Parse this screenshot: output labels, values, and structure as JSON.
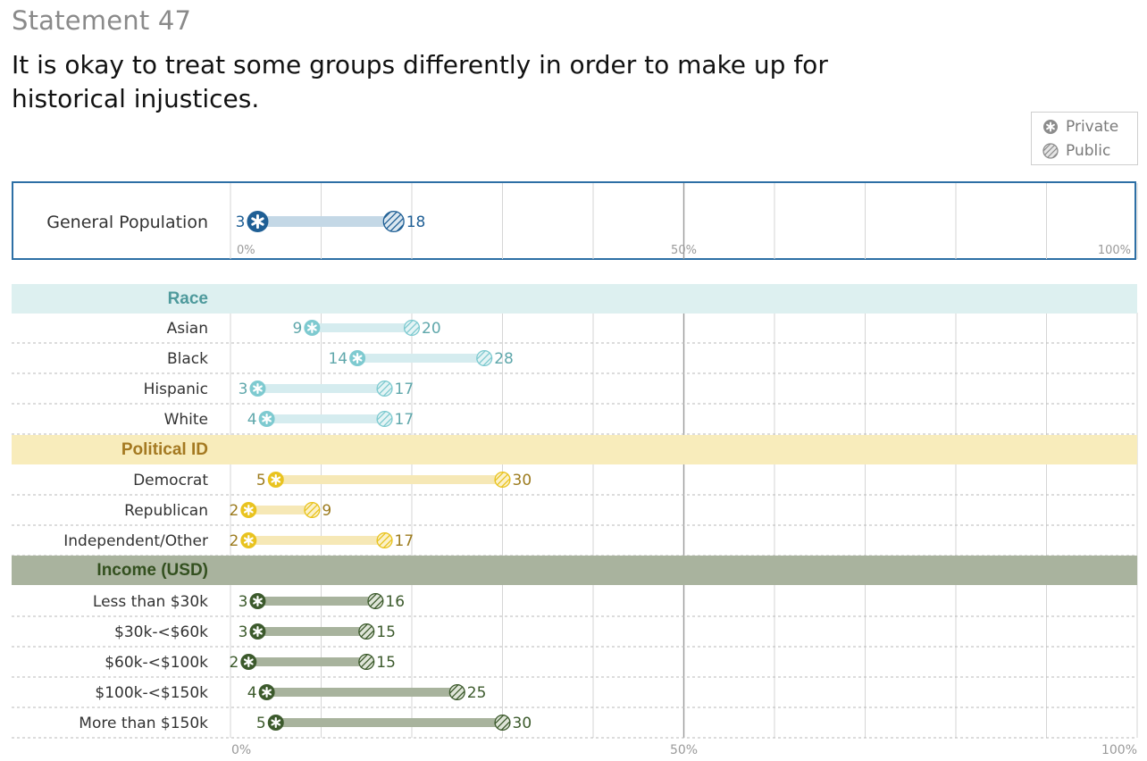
{
  "header": {
    "statement": "Statement 47",
    "question": "It is okay to treat some groups differently in order to make up for historical injustices."
  },
  "legend": {
    "private_label": "Private",
    "public_label": "Public",
    "private_icon": "asterisk-circle-icon",
    "public_icon": "hatched-circle-icon"
  },
  "colors": {
    "general": "#1f5f95",
    "general_bar": "#c4d8e6",
    "race": "#7ecad0",
    "race_bar": "#d5ecef",
    "race_band": "#ddf0f0",
    "race_title": "#4e9a9c",
    "political": "#e9c31f",
    "political_bar": "#f6e8b6",
    "political_band": "#f8ecbb",
    "political_title": "#a47921",
    "income": "#3c5a2c",
    "income_bar": "#a8b39d",
    "income_band": "#a9b39e",
    "income_title": "#33501f"
  },
  "chart_data": {
    "type": "dumbbell",
    "title": "It is okay to treat some groups differently in order to make up for historical injustices.",
    "unit": "%",
    "xlim": [
      0,
      100
    ],
    "ticks": [
      "0%",
      "50%",
      "100%"
    ],
    "series": [
      {
        "name": "Private"
      },
      {
        "name": "Public"
      }
    ],
    "general": {
      "label": "General Population",
      "private": 3,
      "public": 18
    },
    "groups": [
      {
        "title": "Race",
        "key": "race",
        "rows": [
          {
            "label": "Asian",
            "private": 9,
            "public": 20
          },
          {
            "label": "Black",
            "private": 14,
            "public": 28
          },
          {
            "label": "Hispanic",
            "private": 3,
            "public": 17
          },
          {
            "label": "White",
            "private": 4,
            "public": 17
          }
        ]
      },
      {
        "title": "Political ID",
        "key": "political",
        "rows": [
          {
            "label": "Democrat",
            "private": 5,
            "public": 30
          },
          {
            "label": "Republican",
            "private": 2,
            "public": 9
          },
          {
            "label": "Independent/Other",
            "private": 2,
            "public": 17
          }
        ]
      },
      {
        "title": "Income (USD)",
        "key": "income",
        "rows": [
          {
            "label": "Less than $30k",
            "private": 3,
            "public": 16
          },
          {
            "label": "$30k-<$60k",
            "private": 3,
            "public": 15
          },
          {
            "label": "$60k-<$100k",
            "private": 2,
            "public": 15
          },
          {
            "label": "$100k-<$150k",
            "private": 4,
            "public": 25
          },
          {
            "label": "More than $150k",
            "private": 5,
            "public": 30
          }
        ]
      }
    ]
  }
}
